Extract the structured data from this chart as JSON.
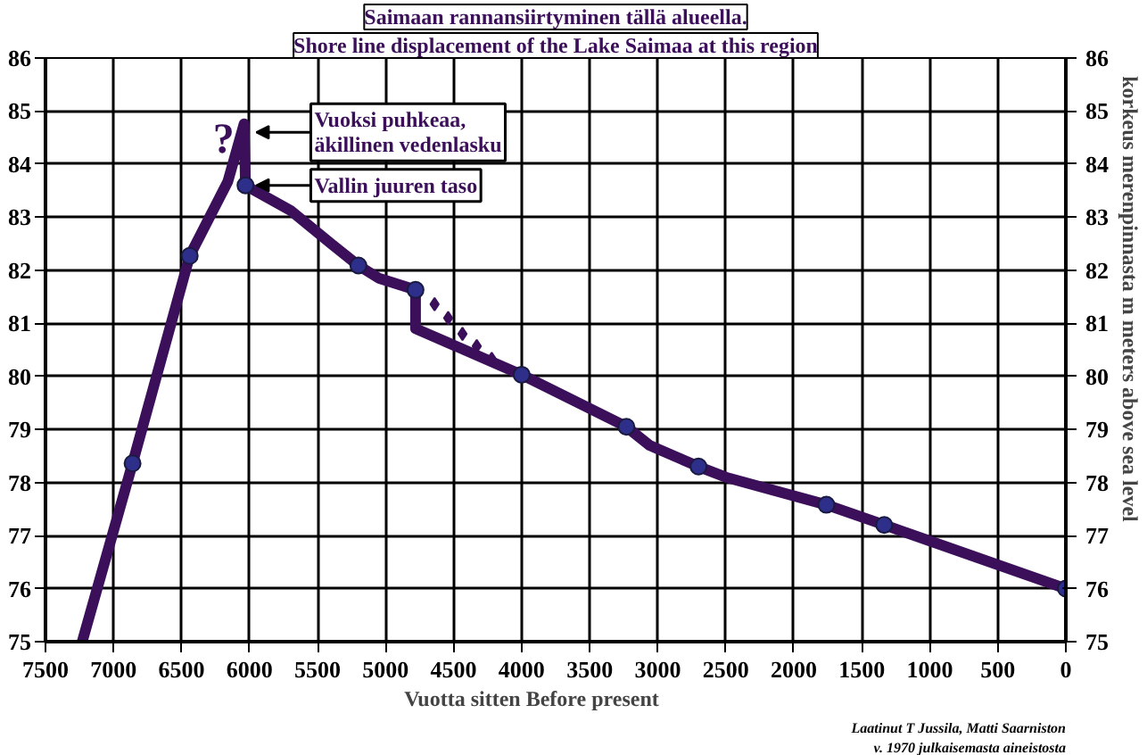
{
  "chart_data": {
    "type": "line",
    "title": "Saimaan rannansiirtyminen tällä alueella.",
    "subtitle": "Shore line displacement of the Lake Saimaa at this region",
    "xlabel": "Vuotta sitten          Before present",
    "y2label": "korkeus merenpinnasta m                    meters above sea level",
    "xlim": [
      7500,
      0
    ],
    "xticks": [
      7500,
      7000,
      6500,
      6000,
      5500,
      5000,
      4500,
      4000,
      3500,
      3000,
      2500,
      2000,
      1500,
      1000,
      500,
      0
    ],
    "ylim": [
      75,
      86
    ],
    "yticks": [
      75,
      76,
      77,
      78,
      79,
      80,
      81,
      82,
      83,
      84,
      85,
      86
    ],
    "y2lim": [
      75,
      86
    ],
    "y2ticks": [
      75,
      76,
      77,
      78,
      79,
      80,
      81,
      82,
      83,
      84,
      85,
      86
    ],
    "grid": true,
    "line_style": "solid",
    "series": [
      {
        "color": "#3c0f5a",
        "x": [
          7230,
          6860,
          6440,
          6160,
          6040,
          6030,
          5700,
          5400,
          5200,
          5050,
          4780,
          4780,
          4000,
          3230,
          3060,
          2700,
          2500,
          1760,
          1335,
          0
        ],
        "values": [
          75,
          78.36,
          82.27,
          83.67,
          84.76,
          83.6,
          83.13,
          82.5,
          82.09,
          81.85,
          81.63,
          80.9,
          80.03,
          79.05,
          78.7,
          78.3,
          78.1,
          77.58,
          77.2,
          76
        ]
      },
      {
        "type": "scatter",
        "marker": "circle",
        "color": "#2e2f8a",
        "x": [
          6860,
          6440,
          6030,
          5200,
          4780,
          4000,
          3230,
          2700,
          1760,
          1335,
          0
        ],
        "values": [
          78.36,
          82.27,
          83.6,
          82.09,
          81.63,
          80.03,
          79.05,
          78.3,
          77.58,
          77.2,
          76
        ]
      },
      {
        "type": "scatter",
        "marker": "diamond",
        "color": "#3c0f5a",
        "x": [
          4640,
          4540,
          4435,
          4330,
          4220
        ],
        "values": [
          81.36,
          81.1,
          80.8,
          80.57,
          80.33
        ]
      }
    ],
    "annotations": [
      "?",
      {
        "text": "Vuoksi puhkeaa,\näkillinen vedenlasku",
        "x": 5950,
        "y": 84.6
      },
      {
        "text": "Vallin juuren taso",
        "x": 5950,
        "y": 83.6
      },
      "Laatinut T Jussila, Matti Saarniston",
      "v. 1970 julkaisemasta aineistosta"
    ]
  }
}
